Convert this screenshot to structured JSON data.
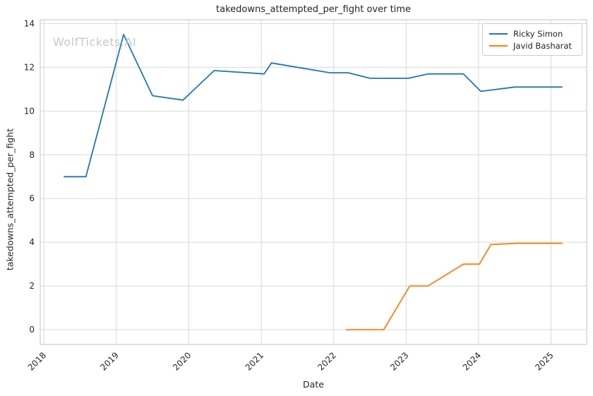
{
  "watermark": "WolfTickets.AI",
  "chart_data": {
    "type": "line",
    "title": "takedowns_attempted_per_fight over time",
    "xlabel": "Date",
    "ylabel": "takedowns_attempted_per_fight",
    "xlim": [
      2017.95,
      2025.49
    ],
    "ylim": [
      -0.675,
      14.175
    ],
    "x_ticks": [
      2018,
      2019,
      2020,
      2021,
      2022,
      2023,
      2024,
      2025
    ],
    "y_ticks": [
      0,
      2,
      4,
      6,
      8,
      10,
      12,
      14
    ],
    "grid": true,
    "legend_position": "upper right",
    "series": [
      {
        "name": "Ricky Simon",
        "color": "#1f77b4",
        "x": [
          2018.28,
          2018.58,
          2019.1,
          2019.5,
          2019.92,
          2020.35,
          2021.04,
          2021.14,
          2021.95,
          2022.2,
          2022.5,
          2023.03,
          2023.3,
          2023.79,
          2024.03,
          2024.5,
          2025.15
        ],
        "y": [
          7.0,
          7.0,
          13.5,
          10.7,
          10.5,
          11.85,
          11.7,
          12.2,
          11.75,
          11.75,
          11.5,
          11.5,
          11.7,
          11.7,
          10.9,
          11.1,
          11.1
        ]
      },
      {
        "name": "Javid Basharat",
        "color": "#ff7f0e",
        "x": [
          2022.17,
          2022.69,
          2023.05,
          2023.3,
          2023.79,
          2024.01,
          2024.17,
          2024.55,
          2025.15
        ],
        "y": [
          0.0,
          0.0,
          2.0,
          2.0,
          3.0,
          3.0,
          3.9,
          3.95,
          3.95
        ]
      }
    ],
    "colors": {
      "grid": "#d9d9d9",
      "spine": "#cccccc",
      "text": "#262626",
      "watermark": "#c8c8c8",
      "background": "#ffffff"
    }
  }
}
